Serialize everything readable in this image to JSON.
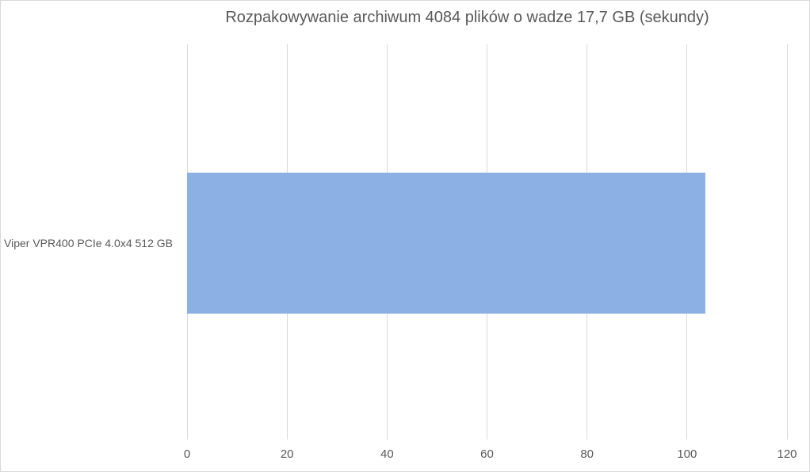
{
  "chart_data": {
    "type": "bar",
    "orientation": "horizontal",
    "title": "Rozpakowywanie archiwum 4084 plików o wadze 17,7 GB (sekundy)",
    "categories": [
      "Viper VPR400 PCIe 4.0x4 512 GB"
    ],
    "values": [
      103.6
    ],
    "xlabel": "",
    "ylabel": "",
    "xlim": [
      0,
      120
    ],
    "xticks": [
      0,
      20,
      40,
      60,
      80,
      100,
      120
    ],
    "grid": "vertical-only",
    "legend": "none",
    "colors": {
      "bar": "#8CB0E4",
      "text": "#595959",
      "gridline": "#D9D9D9",
      "background": "#FFFFFF"
    }
  }
}
